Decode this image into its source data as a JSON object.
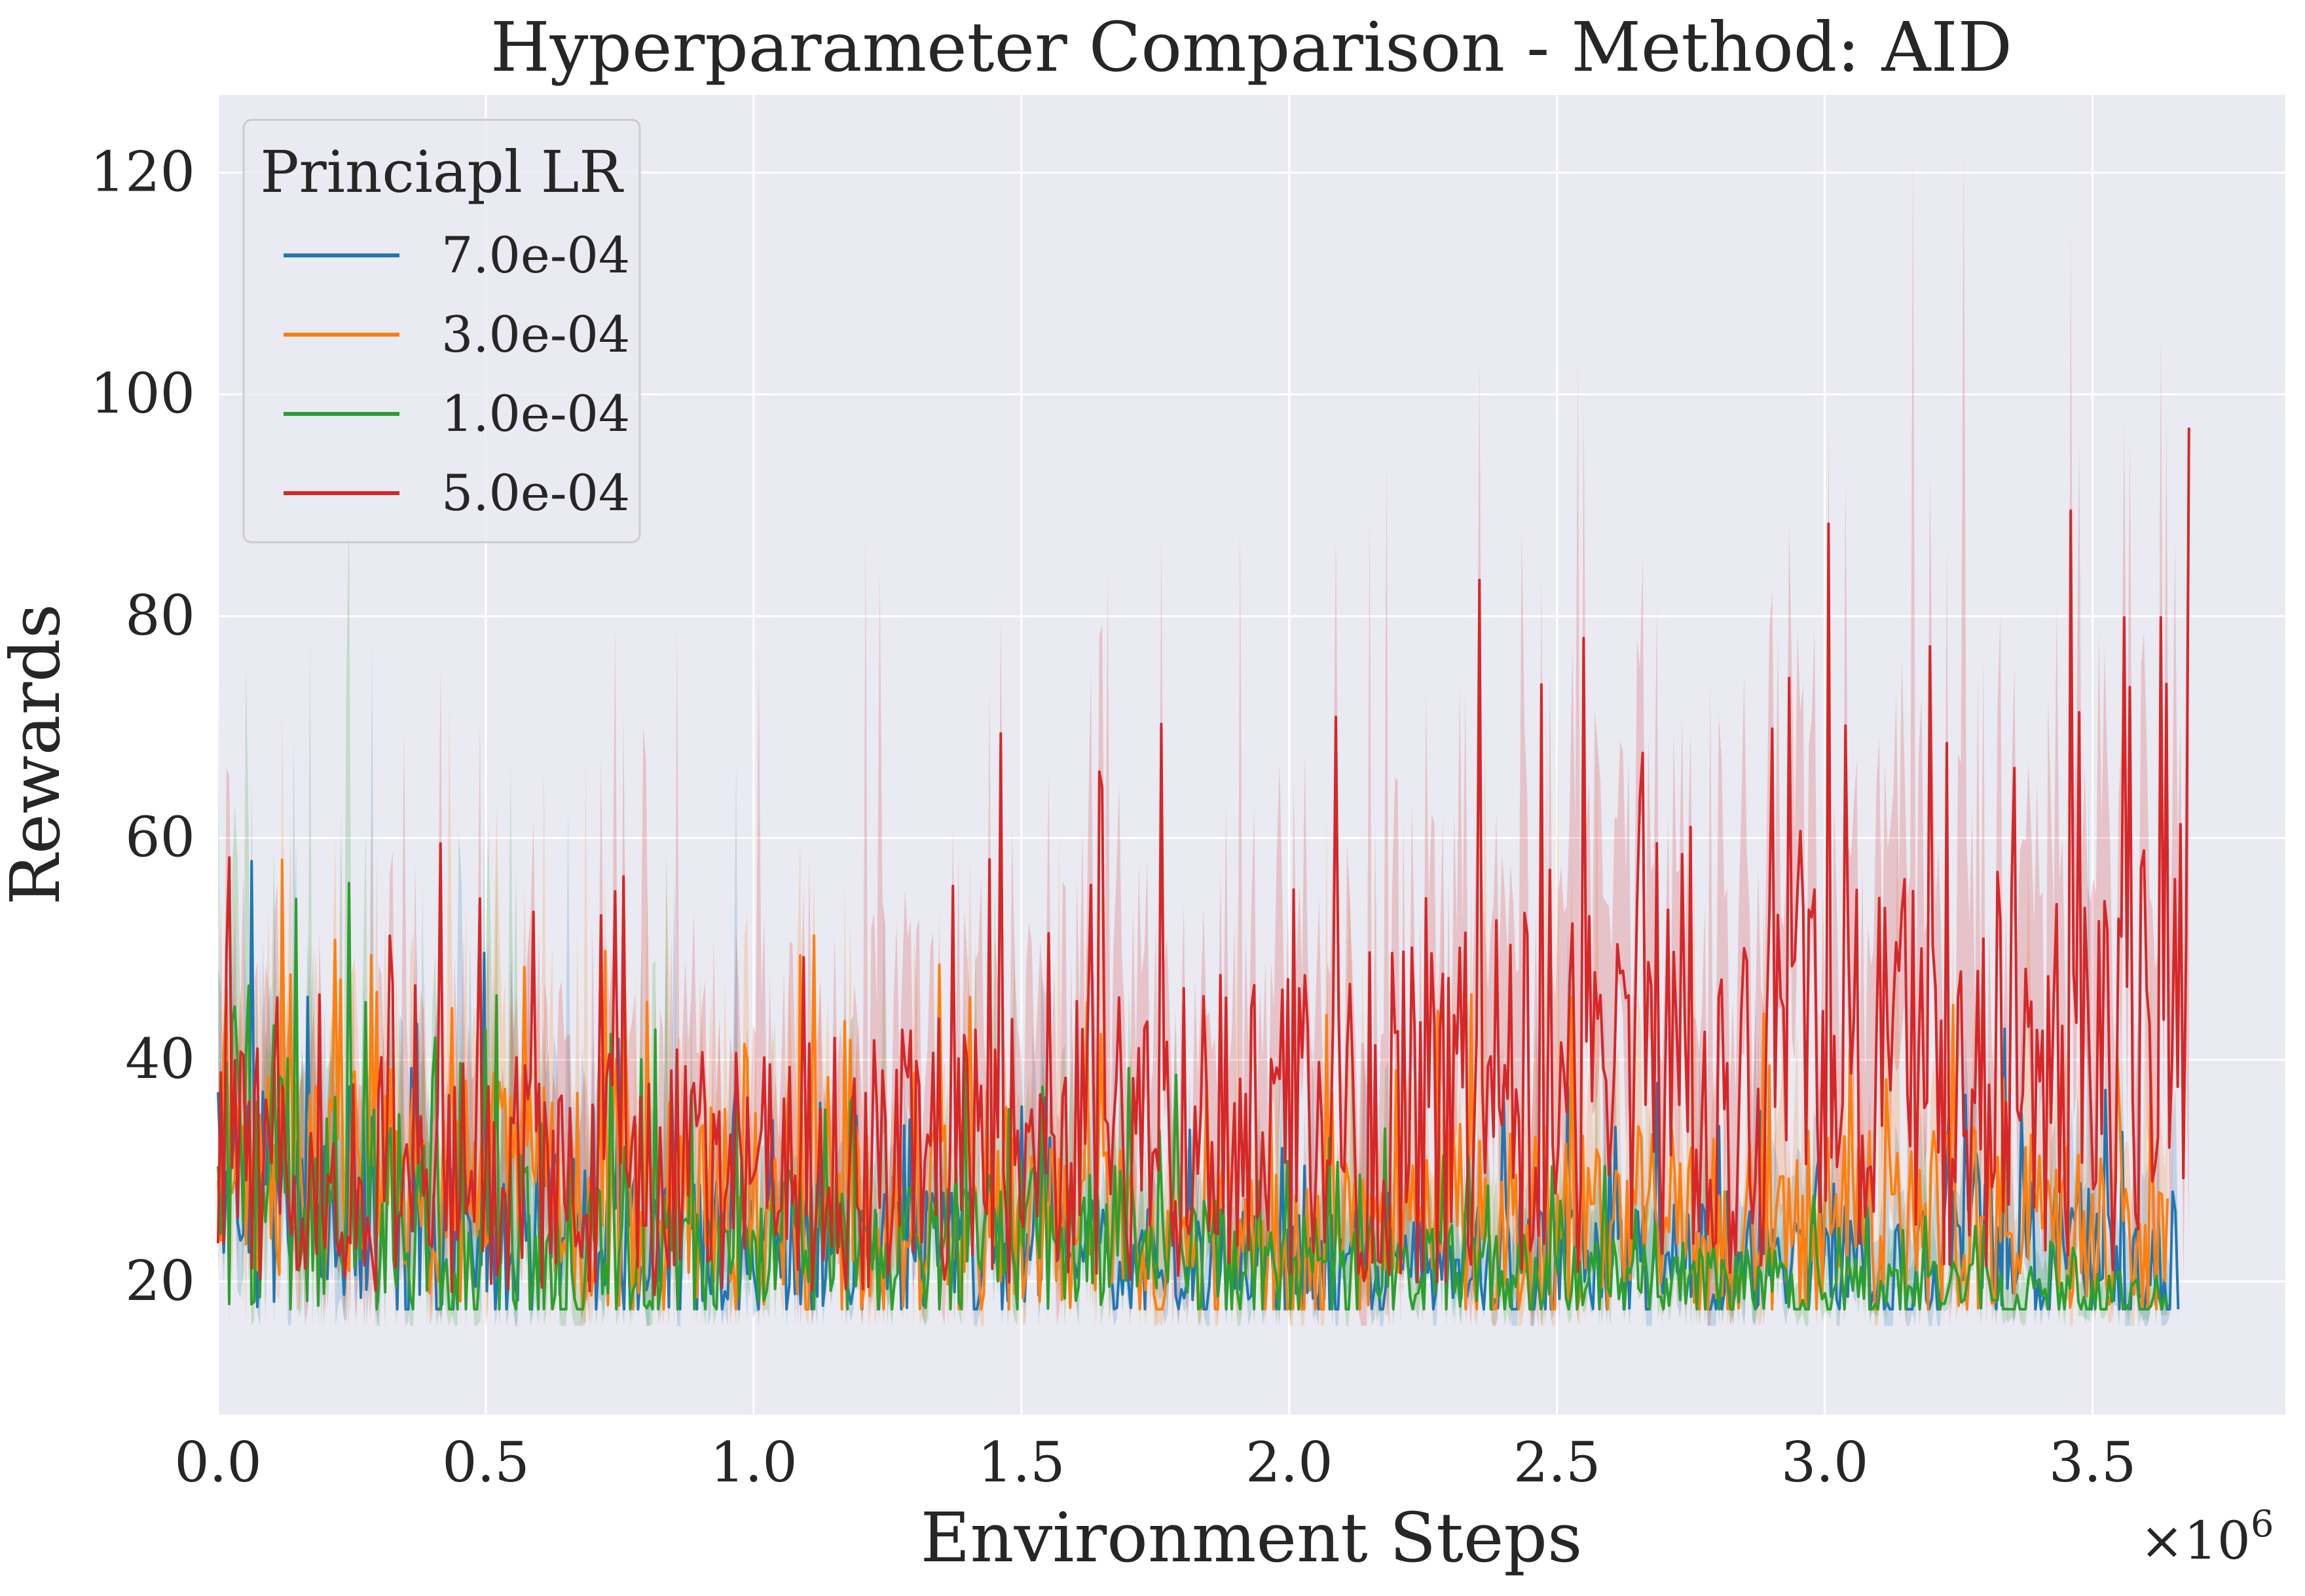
{
  "chart_data": {
    "type": "line",
    "title": "Hyperparameter Comparison - Method: AID",
    "xlabel": "Environment Steps",
    "ylabel": "Rewards",
    "x_multiplier_label": "×10",
    "x_multiplier_exponent": "6",
    "xlim": [
      0,
      3.86
    ],
    "ylim": [
      8,
      127
    ],
    "x_ticks": [
      0.0,
      0.5,
      1.0,
      1.5,
      2.0,
      2.5,
      3.0,
      3.5
    ],
    "x_tick_labels": [
      "0.0",
      "0.5",
      "1.0",
      "1.5",
      "2.0",
      "2.5",
      "3.0",
      "3.5"
    ],
    "y_ticks": [
      20,
      40,
      60,
      80,
      100,
      120
    ],
    "y_tick_labels": [
      "20",
      "40",
      "60",
      "80",
      "100",
      "120"
    ],
    "grid": true,
    "background": "#eaeaf2",
    "legend": {
      "title": "Princiapl LR",
      "placement": "top-left"
    },
    "series": [
      {
        "name": "7.0e-04",
        "color": "#1f77b4",
        "x_end": 3.66,
        "floor": 17.5,
        "envelope": [
          [
            0,
            26
          ],
          [
            0.5,
            23
          ],
          [
            1.0,
            22
          ],
          [
            1.5,
            22
          ],
          [
            2.0,
            21
          ],
          [
            2.5,
            21
          ],
          [
            3.0,
            20
          ],
          [
            3.3,
            22
          ],
          [
            3.66,
            20
          ]
        ],
        "spread": [
          [
            0,
            14
          ],
          [
            1.0,
            8
          ],
          [
            2.0,
            6
          ],
          [
            3.0,
            8
          ],
          [
            3.66,
            10
          ]
        ],
        "band_peak": 78
      },
      {
        "name": "3.0e-04",
        "color": "#ff7f0e",
        "x_end": 3.64,
        "floor": 17.5,
        "envelope": [
          [
            0,
            30
          ],
          [
            0.5,
            27
          ],
          [
            1.0,
            25
          ],
          [
            1.5,
            24
          ],
          [
            2.0,
            22
          ],
          [
            2.5,
            24
          ],
          [
            3.0,
            24
          ],
          [
            3.3,
            25
          ],
          [
            3.64,
            22
          ]
        ],
        "spread": [
          [
            0,
            14
          ],
          [
            1.0,
            12
          ],
          [
            2.0,
            9
          ],
          [
            2.5,
            12
          ],
          [
            3.0,
            11
          ],
          [
            3.64,
            10
          ]
        ],
        "band_peak": 72
      },
      {
        "name": "1.0e-04",
        "color": "#2ca02c",
        "x_end": 3.64,
        "floor": 17.5,
        "envelope": [
          [
            0,
            27
          ],
          [
            0.5,
            22
          ],
          [
            1.0,
            22
          ],
          [
            1.5,
            23
          ],
          [
            2.0,
            21
          ],
          [
            2.5,
            20
          ],
          [
            3.0,
            19
          ],
          [
            3.64,
            18
          ]
        ],
        "spread": [
          [
            0,
            16
          ],
          [
            1.0,
            8
          ],
          [
            1.5,
            9
          ],
          [
            2.0,
            6
          ],
          [
            3.0,
            4
          ],
          [
            3.64,
            3
          ]
        ],
        "band_peak": 90
      },
      {
        "name": "5.0e-04",
        "color": "#d62728",
        "x_end": 3.68,
        "floor": 17.5,
        "envelope": [
          [
            0,
            30
          ],
          [
            0.5,
            28
          ],
          [
            1.0,
            29
          ],
          [
            1.5,
            31
          ],
          [
            2.0,
            33
          ],
          [
            2.5,
            35
          ],
          [
            3.0,
            37
          ],
          [
            3.5,
            38
          ],
          [
            3.68,
            40
          ]
        ],
        "spread": [
          [
            0,
            14
          ],
          [
            1.0,
            14
          ],
          [
            2.0,
            18
          ],
          [
            2.5,
            22
          ],
          [
            3.0,
            22
          ],
          [
            3.68,
            26
          ]
        ],
        "band_peak": 122,
        "last_value": 97
      }
    ]
  }
}
